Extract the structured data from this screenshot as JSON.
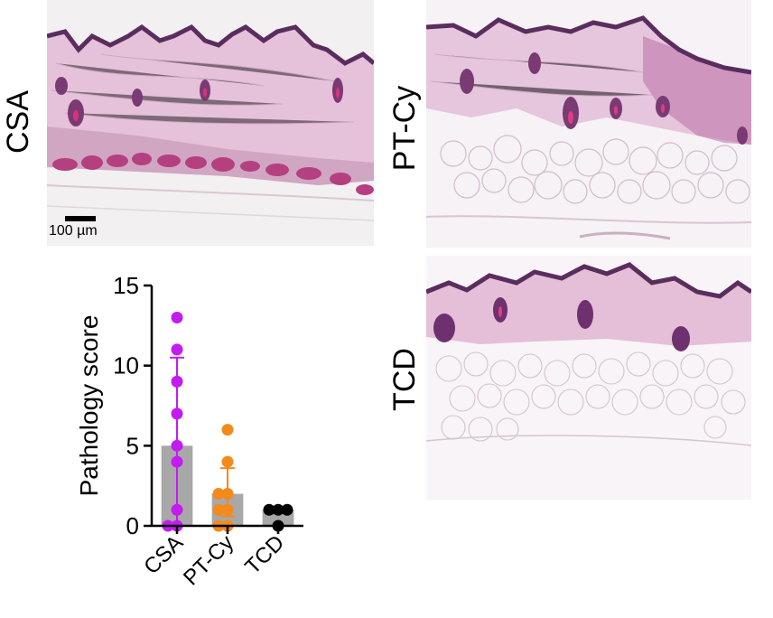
{
  "figure": {
    "panel_labels": {
      "csa": "CSA",
      "ptcy": "PT-Cy",
      "tcd": "TCD"
    },
    "scale_bar": "100 µm"
  },
  "colors": {
    "epidermis": "#5a2d5e",
    "dermis": "#e7c6dc",
    "dermis_pink": "#dcb0cc",
    "muscle": "#b4407f",
    "fat_bg": "#f6f2f5",
    "fat_line": "#d8c4d4",
    "csa_dot": "#c21cf0",
    "ptcy_dot": "#f38a1c",
    "tcd_dot": "#000000",
    "bar": "#a8a8a8"
  },
  "chart_data": {
    "type": "bar",
    "categories": [
      "CSA",
      "PT-Cy",
      "TCD"
    ],
    "values": [
      5,
      2,
      1
    ],
    "error": [
      {
        "low": 0,
        "high": 10.5
      },
      {
        "low": 0.6,
        "high": 3.6
      },
      {
        "low": 1,
        "high": 1
      }
    ],
    "points": [
      [
        13,
        11,
        9,
        7,
        5,
        4,
        1,
        0,
        0
      ],
      [
        6,
        4,
        2,
        2,
        1,
        1,
        0,
        0
      ],
      [
        1,
        1,
        1,
        0
      ]
    ],
    "ylabel": "Pathology score",
    "ylim": [
      0,
      15
    ],
    "yticks": [
      0,
      5,
      10,
      15
    ],
    "grid": false
  }
}
